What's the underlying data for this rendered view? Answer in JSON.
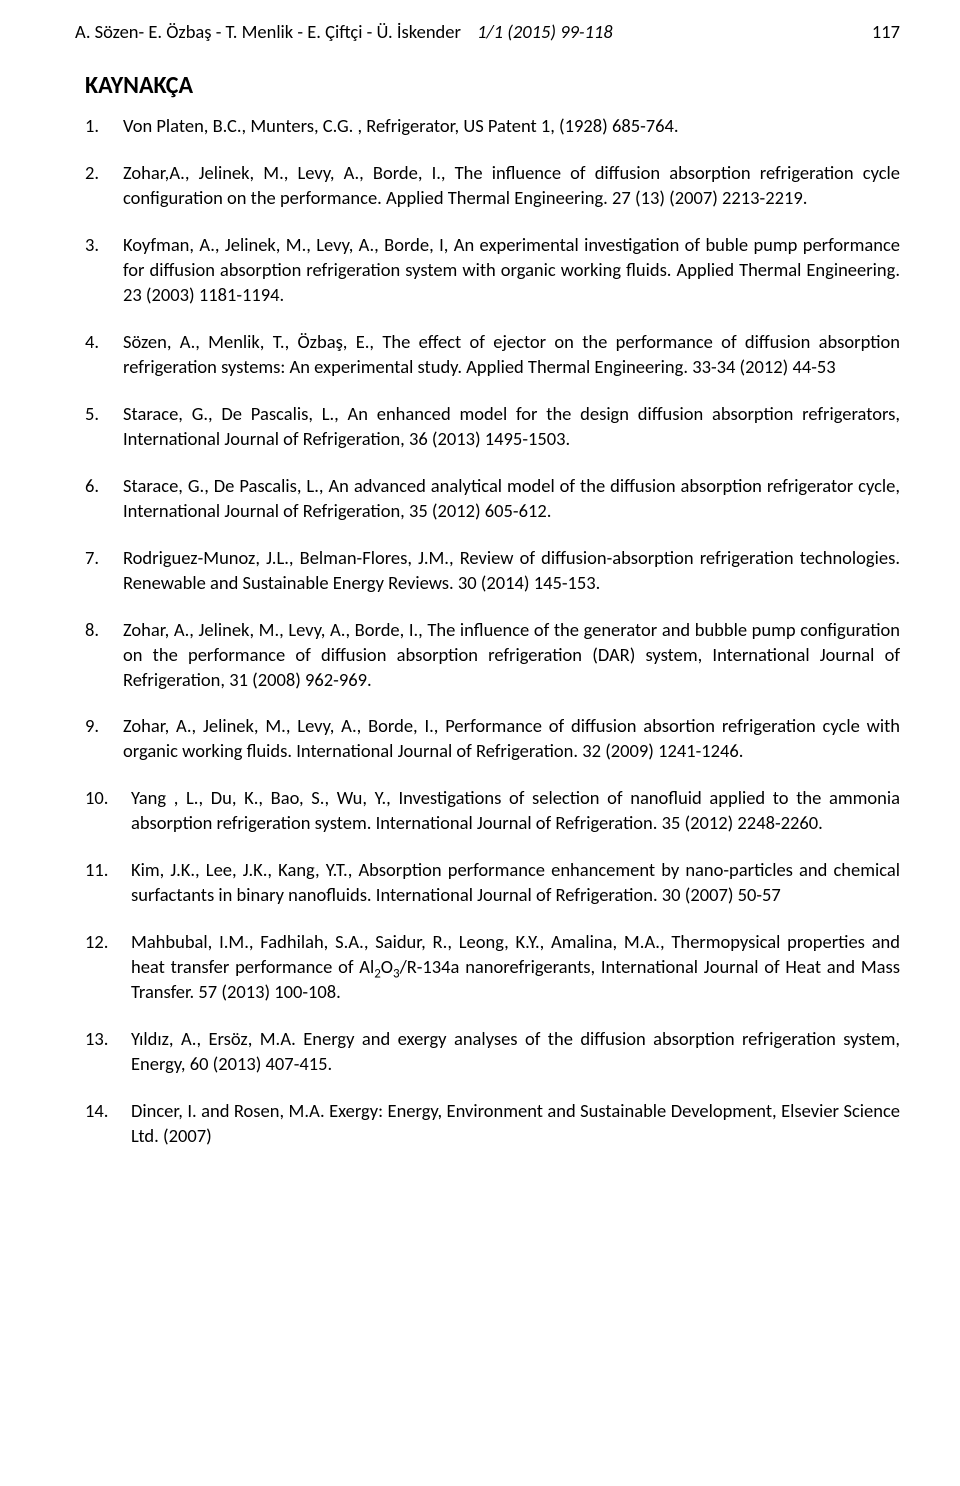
{
  "header": {
    "authors": "A. Sözen- E. Özbaş - T. Menlik - E. Çiftçi - Ü. İskender",
    "issue": "1/1   (2015)   99-118",
    "page_number": "117"
  },
  "title": "KAYNAKÇA",
  "references": [
    {
      "n": "1.",
      "text": "Von Platen, B.C., Munters, C.G. , Refrigerator, US Patent 1, (1928) 685-764."
    },
    {
      "n": "2.",
      "text": "Zohar,A., Jelinek, M., Levy, A., Borde, I., The influence of diffusion absorption refrigeration cycle configuration on the performance. Applied Thermal Engineering. 27 (13) (2007) 2213-2219."
    },
    {
      "n": "3.",
      "text": "Koyfman, A., Jelinek, M., Levy, A., Borde, I, An experimental investigation of buble pump performance for diffusion absorption refrigeration system with organic working fluids. Applied Thermal Engineering. 23 (2003) 1181-1194."
    },
    {
      "n": "4.",
      "text": "Sözen, A., Menlik, T., Özbaş, E., The effect of ejector on the performance of diffusion absorption refrigeration systems: An experimental study. Applied Thermal Engineering. 33-34 (2012) 44-53"
    },
    {
      "n": "5.",
      "text": "Starace, G., De Pascalis, L., An enhanced model for the design diffusion absorption refrigerators, International Journal of Refrigeration, 36 (2013) 1495-1503."
    },
    {
      "n": "6.",
      "text": "Starace, G., De Pascalis, L., An advanced analytical model of the diffusion absorption refrigerator cycle, International Journal of Refrigeration, 35 (2012) 605-612."
    },
    {
      "n": "7.",
      "text": "Rodriguez-Munoz, J.L., Belman-Flores, J.M.,  Review of diffusion-absorption refrigeration technologies. Renewable and Sustainable Energy Reviews. 30 (2014) 145-153."
    },
    {
      "n": "8.",
      "text": "Zohar, A., Jelinek, M., Levy, A., Borde, I., The influence of the generator and bubble pump configuration on the performance of diffusion absorption refrigeration (DAR) system, International Journal of Refrigeration, 31 (2008) 962-969."
    },
    {
      "n": "9.",
      "text": "Zohar, A., Jelinek, M., Levy, A., Borde, I.,  Performance of diffusion absortion refrigeration cycle with organic working fluids. International Journal of Refrigeration. 32 (2009) 1241-1246."
    },
    {
      "n": "10.",
      "text": " Yang , L., Du, K., Bao, S., Wu, Y., Investigations of selection of nanofluid applied to the ammonia absorption refrigeration system. International Journal of Refrigeration. 35 (2012) 2248-2260."
    },
    {
      "n": "11.",
      "text": " Kim, J.K., Lee, J.K., Kang, Y.T., Absorption performance enhancement by nano-particles and chemical surfactants in binary nanofluids. International Journal of Refrigeration. 30 (2007) 50-57"
    },
    {
      "n": "12.",
      "html": " Mahbubal, I.M., Fadhilah, S.A., Saidur, R., Leong, K.Y., Amalina, M.A., Thermopysical properties and heat transfer performance of Al<sub>2</sub>O<sub>3</sub>/R-134a nanorefrigerants, International Journal of Heat and Mass Transfer. 57 (2013) 100-108."
    },
    {
      "n": "13.",
      "text": " Yıldız, A., Ersöz, M.A. Energy and exergy analyses of the diffusion absorption refrigeration system, Energy, 60 (2013) 407-415."
    },
    {
      "n": "14.",
      "text": " Dincer, I. and Rosen, M.A.  Exergy: Energy, Environment and Sustainable Development, Elsevier Science Ltd. (2007)"
    }
  ]
}
